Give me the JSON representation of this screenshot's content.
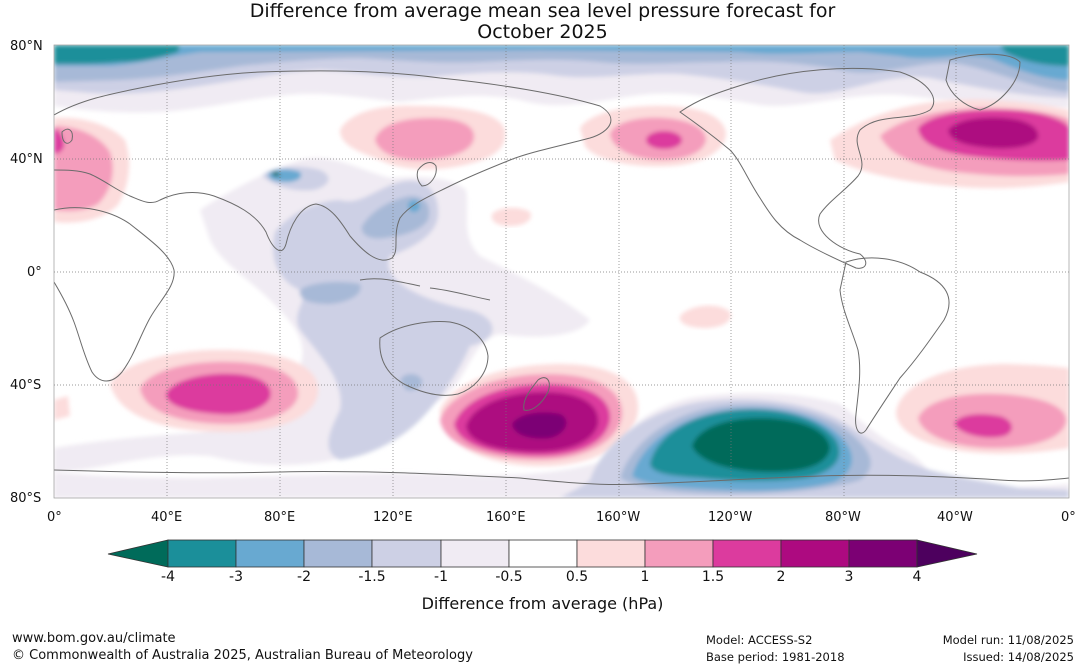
{
  "title": {
    "line1": "Difference from average mean sea level pressure forecast for",
    "line2": "October 2025"
  },
  "map": {
    "lat_labels": [
      "80°N",
      "40°N",
      "0°",
      "40°S",
      "80°S"
    ],
    "lon_labels": [
      "0°",
      "40°E",
      "80°E",
      "120°E",
      "160°E",
      "160°W",
      "120°W",
      "80°W",
      "40°W",
      "0°"
    ]
  },
  "legend": {
    "ticks": [
      "-4",
      "-3",
      "-2",
      "-1.5",
      "-1",
      "-0.5",
      "0.5",
      "1",
      "1.5",
      "2",
      "3",
      "4"
    ],
    "colors": [
      "#006b5a",
      "#1b8f9a",
      "#68a9d1",
      "#a7b9d7",
      "#cdd0e5",
      "#f0ebf3",
      "#ffffff",
      "#fcdcdc",
      "#f49dbc",
      "#dc3b9e",
      "#ad0a80",
      "#7c0074",
      "#4d005e"
    ],
    "title": "Difference from average (hPa)"
  },
  "footer": {
    "url": "www.bom.gov.au/climate",
    "copyright": "© Commonwealth of Australia 2025, Australian Bureau of Meteorology",
    "model": "Model: ACCESS-S2",
    "base_period": "Base period: 1981-2018",
    "model_run": "Model run: 11/08/2025",
    "issued": "Issued: 14/08/2025"
  }
}
